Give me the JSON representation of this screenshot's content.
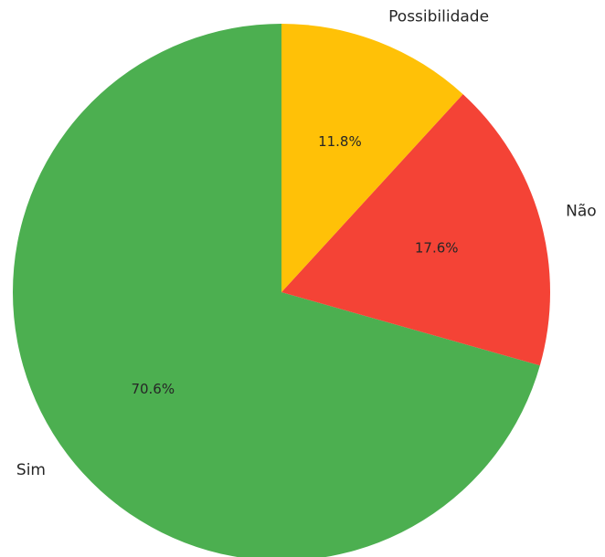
{
  "chart_data": {
    "type": "pie",
    "categories": [
      "Sim",
      "Não",
      "Possibilidade"
    ],
    "values": [
      70.6,
      17.6,
      11.8
    ],
    "value_labels": [
      "70.6%",
      "17.6%",
      "11.8%"
    ],
    "colors": [
      "#4caf50",
      "#f44336",
      "#ffc107"
    ],
    "start_angle_deg": 90,
    "direction": "counterclockwise",
    "legend": "none"
  }
}
